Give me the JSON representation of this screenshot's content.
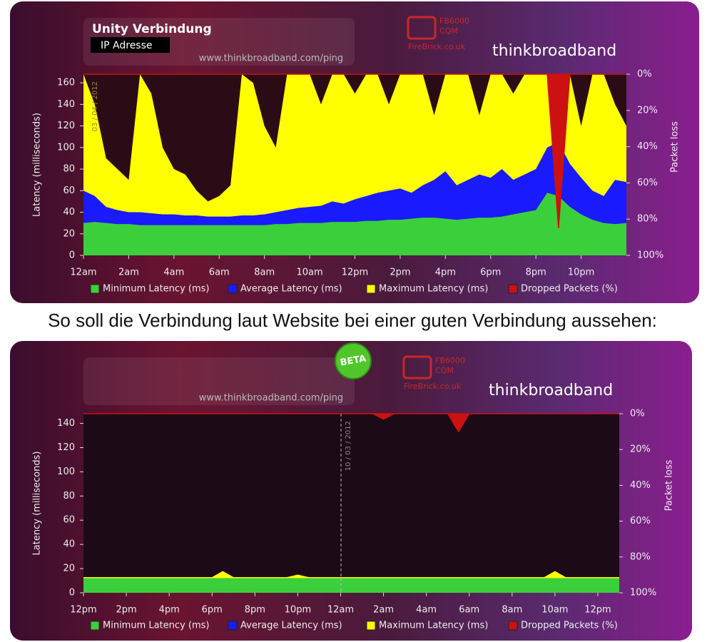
{
  "caption": "So soll die Verbindung laut Website bei einer guten Verbindung aussehen:",
  "chart_data": [
    {
      "type": "area",
      "title": "Unity Verbindung",
      "subtitle": "IP Adresse",
      "watermark": "www.thinkbroadband.com/ping",
      "brand": "thinkbroadband",
      "sponsor": [
        "FB6000",
        "CQM",
        "FireBrick.co.uk"
      ],
      "date_label": "03 / 04 / 2012",
      "y_label": "Latency (milliseconds)",
      "y2_label": "Packet loss",
      "categories": [
        "12am",
        null,
        null,
        null,
        "2am",
        null,
        null,
        null,
        "4am",
        null,
        null,
        null,
        "6am",
        null,
        null,
        null,
        "8am",
        null,
        null,
        null,
        "10am",
        null,
        null,
        null,
        "12pm",
        null,
        null,
        null,
        "2pm",
        null,
        null,
        null,
        "4pm",
        null,
        null,
        null,
        "6pm",
        null,
        null,
        null,
        "8pm",
        null,
        null,
        null,
        "10pm",
        null,
        null,
        null,
        null
      ],
      "series": [
        {
          "name": "Minimum Latency (ms)",
          "color": "#3ccf3c",
          "values": [
            30,
            31,
            30,
            29,
            29,
            28,
            28,
            28,
            28,
            28,
            28,
            28,
            28,
            28,
            28,
            28,
            28,
            29,
            29,
            30,
            30,
            30,
            31,
            31,
            31,
            32,
            32,
            33,
            33,
            34,
            35,
            35,
            34,
            33,
            34,
            35,
            35,
            36,
            38,
            40,
            42,
            58,
            55,
            45,
            38,
            33,
            30,
            29,
            30
          ]
        },
        {
          "name": "Average Latency (ms)",
          "color": "#1a1aff",
          "values": [
            60,
            55,
            45,
            42,
            40,
            40,
            39,
            38,
            38,
            37,
            37,
            36,
            36,
            36,
            37,
            37,
            38,
            40,
            42,
            44,
            45,
            46,
            50,
            48,
            52,
            55,
            58,
            60,
            62,
            58,
            65,
            70,
            78,
            65,
            70,
            75,
            72,
            80,
            70,
            75,
            80,
            100,
            105,
            85,
            72,
            60,
            55,
            70,
            68
          ]
        },
        {
          "name": "Maximum Latency (ms)",
          "color": "#ffff00",
          "values": [
            168,
            140,
            90,
            80,
            70,
            168,
            150,
            100,
            80,
            75,
            60,
            50,
            55,
            65,
            168,
            160,
            120,
            100,
            168,
            168,
            168,
            140,
            168,
            168,
            150,
            168,
            168,
            140,
            168,
            168,
            168,
            130,
            168,
            168,
            168,
            130,
            168,
            168,
            150,
            168,
            168,
            168,
            168,
            168,
            120,
            168,
            168,
            140,
            120
          ]
        },
        {
          "name": "Dropped Packets (%)",
          "color": "#cc1111",
          "axis": "y2",
          "values": [
            0,
            0,
            0,
            0,
            0,
            0,
            0,
            0,
            0,
            0,
            0,
            0,
            0,
            0,
            0,
            0,
            0,
            0,
            0,
            0,
            0,
            0,
            0,
            0,
            0,
            0,
            0,
            0,
            0,
            0,
            0,
            0,
            0,
            0,
            0,
            0,
            0,
            0,
            0,
            0,
            0,
            0,
            85,
            0,
            0,
            0,
            0,
            0,
            0
          ]
        }
      ],
      "ylim": [
        0,
        168
      ],
      "yticks": [
        0,
        20,
        40,
        60,
        80,
        100,
        120,
        140,
        160
      ],
      "y2lim": [
        100,
        0
      ],
      "y2ticks": [
        {
          "value": 0,
          "label": "0%"
        },
        {
          "value": 20,
          "label": "20%"
        },
        {
          "value": 40,
          "label": "40%"
        },
        {
          "value": 60,
          "label": "60%"
        },
        {
          "value": 80,
          "label": "80%"
        },
        {
          "value": 100,
          "label": "100%"
        }
      ]
    },
    {
      "type": "area",
      "badge": "BETA",
      "watermark": "www.thinkbroadband.com/ping",
      "brand": "thinkbroadband",
      "sponsor": [
        "FB6000",
        "CQM",
        "FireBrick.co.uk"
      ],
      "date_label": "10 / 03 / 2012",
      "y_label": "Latency (milliseconds)",
      "y2_label": "Packet loss",
      "categories": [
        "12pm",
        null,
        null,
        null,
        "2pm",
        null,
        null,
        null,
        "4pm",
        null,
        null,
        null,
        "6pm",
        null,
        null,
        null,
        "8pm",
        null,
        null,
        null,
        "10pm",
        null,
        null,
        null,
        "12am",
        null,
        null,
        null,
        "2am",
        null,
        null,
        null,
        "4am",
        null,
        null,
        null,
        "6am",
        null,
        null,
        null,
        "8am",
        null,
        null,
        null,
        "10am",
        null,
        null,
        null,
        "12pm",
        null,
        null
      ],
      "series": [
        {
          "name": "Minimum Latency (ms)",
          "color": "#3ccf3c",
          "values": [
            12,
            12,
            12,
            12,
            12,
            12,
            12,
            12,
            12,
            12,
            12,
            12,
            12,
            12,
            12,
            12,
            12,
            12,
            12,
            12,
            12,
            12,
            12,
            12,
            12,
            12,
            12,
            12,
            12,
            12,
            12,
            12,
            12,
            12,
            12,
            12,
            12,
            12,
            12,
            12,
            12,
            12,
            12,
            12,
            12,
            12,
            12,
            12,
            12,
            12,
            12
          ]
        },
        {
          "name": "Average Latency (ms)",
          "color": "#1a1aff",
          "values": [
            12,
            12,
            12,
            12,
            12,
            12,
            12,
            12,
            12,
            12,
            12,
            12,
            12,
            12,
            12,
            12,
            12,
            12,
            12,
            12,
            12,
            12,
            12,
            12,
            12,
            12,
            12,
            12,
            12,
            12,
            12,
            12,
            12,
            12,
            12,
            12,
            12,
            12,
            12,
            12,
            12,
            12,
            12,
            12,
            12,
            12,
            12,
            12,
            12,
            12,
            12
          ]
        },
        {
          "name": "Maximum Latency (ms)",
          "color": "#ffff00",
          "values": [
            13,
            13,
            13,
            13,
            13,
            13,
            13,
            13,
            13,
            13,
            13,
            13,
            13,
            18,
            13,
            13,
            13,
            13,
            13,
            13,
            15,
            13,
            13,
            13,
            13,
            13,
            13,
            13,
            13,
            13,
            13,
            13,
            13,
            13,
            13,
            13,
            13,
            13,
            13,
            13,
            13,
            13,
            13,
            13,
            18,
            13,
            13,
            13,
            13,
            13,
            13
          ]
        },
        {
          "name": "Dropped Packets (%)",
          "color": "#cc1111",
          "axis": "y2",
          "values": [
            0,
            0,
            0,
            0,
            0,
            0,
            0,
            0,
            0,
            0,
            0,
            0,
            0,
            0,
            0,
            0,
            0,
            0,
            0,
            0,
            0,
            0,
            0,
            0,
            0,
            0,
            0,
            0,
            3,
            0,
            0,
            0,
            0,
            0,
            0,
            10,
            0,
            0,
            0,
            0,
            0,
            0,
            0,
            0,
            0,
            0,
            0,
            0,
            0,
            0,
            0
          ]
        }
      ],
      "ylim": [
        0,
        148
      ],
      "yticks": [
        0,
        20,
        40,
        60,
        80,
        100,
        120,
        140
      ],
      "y2lim": [
        100,
        0
      ],
      "y2ticks": [
        {
          "value": 0,
          "label": "0%"
        },
        {
          "value": 20,
          "label": "20%"
        },
        {
          "value": 40,
          "label": "40%"
        },
        {
          "value": 60,
          "label": "60%"
        },
        {
          "value": 80,
          "label": "80%"
        },
        {
          "value": 100,
          "label": "100%"
        }
      ]
    }
  ]
}
